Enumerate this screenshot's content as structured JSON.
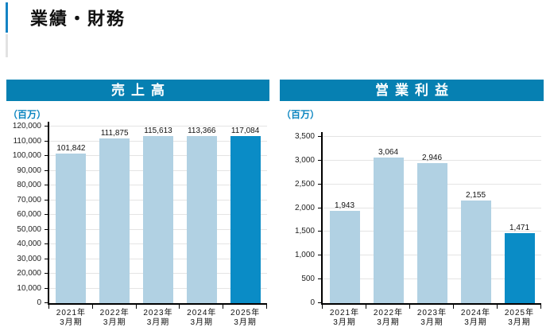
{
  "header": {
    "title": "業績・財務"
  },
  "colors": {
    "accent": "#1483c4",
    "accent_gray": "#e2e2e2",
    "panel_title_bg": "#0680b2",
    "unit_text": "#0a85c0",
    "bar": "#b1d1e3",
    "bar_highlight": "#0a8cc6",
    "gridline": "#e4e4e4",
    "axis": "#000000"
  },
  "chart_data": [
    {
      "type": "bar",
      "title": "売上高",
      "unit": "（百万）",
      "categories": [
        "2021年3月期",
        "2022年3月期",
        "2023年3月期",
        "2024年3月期",
        "2025年3月期"
      ],
      "category_line1": [
        "2021年",
        "2022年",
        "2023年",
        "2024年",
        "2025年"
      ],
      "category_line2": [
        "3月期",
        "3月期",
        "3月期",
        "3月期",
        "3月期"
      ],
      "values": [
        101842,
        111875,
        115613,
        113366,
        117084
      ],
      "value_labels": [
        "101,842",
        "111,875",
        "115,613",
        "113,366",
        "117,084"
      ],
      "ylim": [
        0,
        120000
      ],
      "ystep": 10000,
      "ytick_labels": [
        "0",
        "10,000",
        "20,000",
        "30,000",
        "40,000",
        "50,000",
        "60,000",
        "70,000",
        "80,000",
        "90,000",
        "100,000",
        "110,000",
        "120,000"
      ],
      "highlight_index": 4,
      "grid": true,
      "legend": "none",
      "xlabel": "",
      "ylabel": "（百万）"
    },
    {
      "type": "bar",
      "title": "営業利益",
      "unit": "（百万）",
      "categories": [
        "2021年3月期",
        "2022年3月期",
        "2023年3月期",
        "2024年3月期",
        "2025年3月期"
      ],
      "category_line1": [
        "2021年",
        "2022年",
        "2023年",
        "2024年",
        "2025年"
      ],
      "category_line2": [
        "3月期",
        "3月期",
        "3月期",
        "3月期",
        "3月期"
      ],
      "values": [
        1943,
        3064,
        2946,
        2155,
        1471
      ],
      "value_labels": [
        "1,943",
        "3,064",
        "2,946",
        "2,155",
        "1,471"
      ],
      "ylim": [
        0,
        3500
      ],
      "ystep": 500,
      "ytick_labels": [
        "0",
        "500",
        "1,000",
        "1,500",
        "2,000",
        "2,500",
        "3,000",
        "3,500"
      ],
      "highlight_index": 4,
      "grid": true,
      "legend": "none",
      "xlabel": "",
      "ylabel": "（百万）"
    }
  ]
}
